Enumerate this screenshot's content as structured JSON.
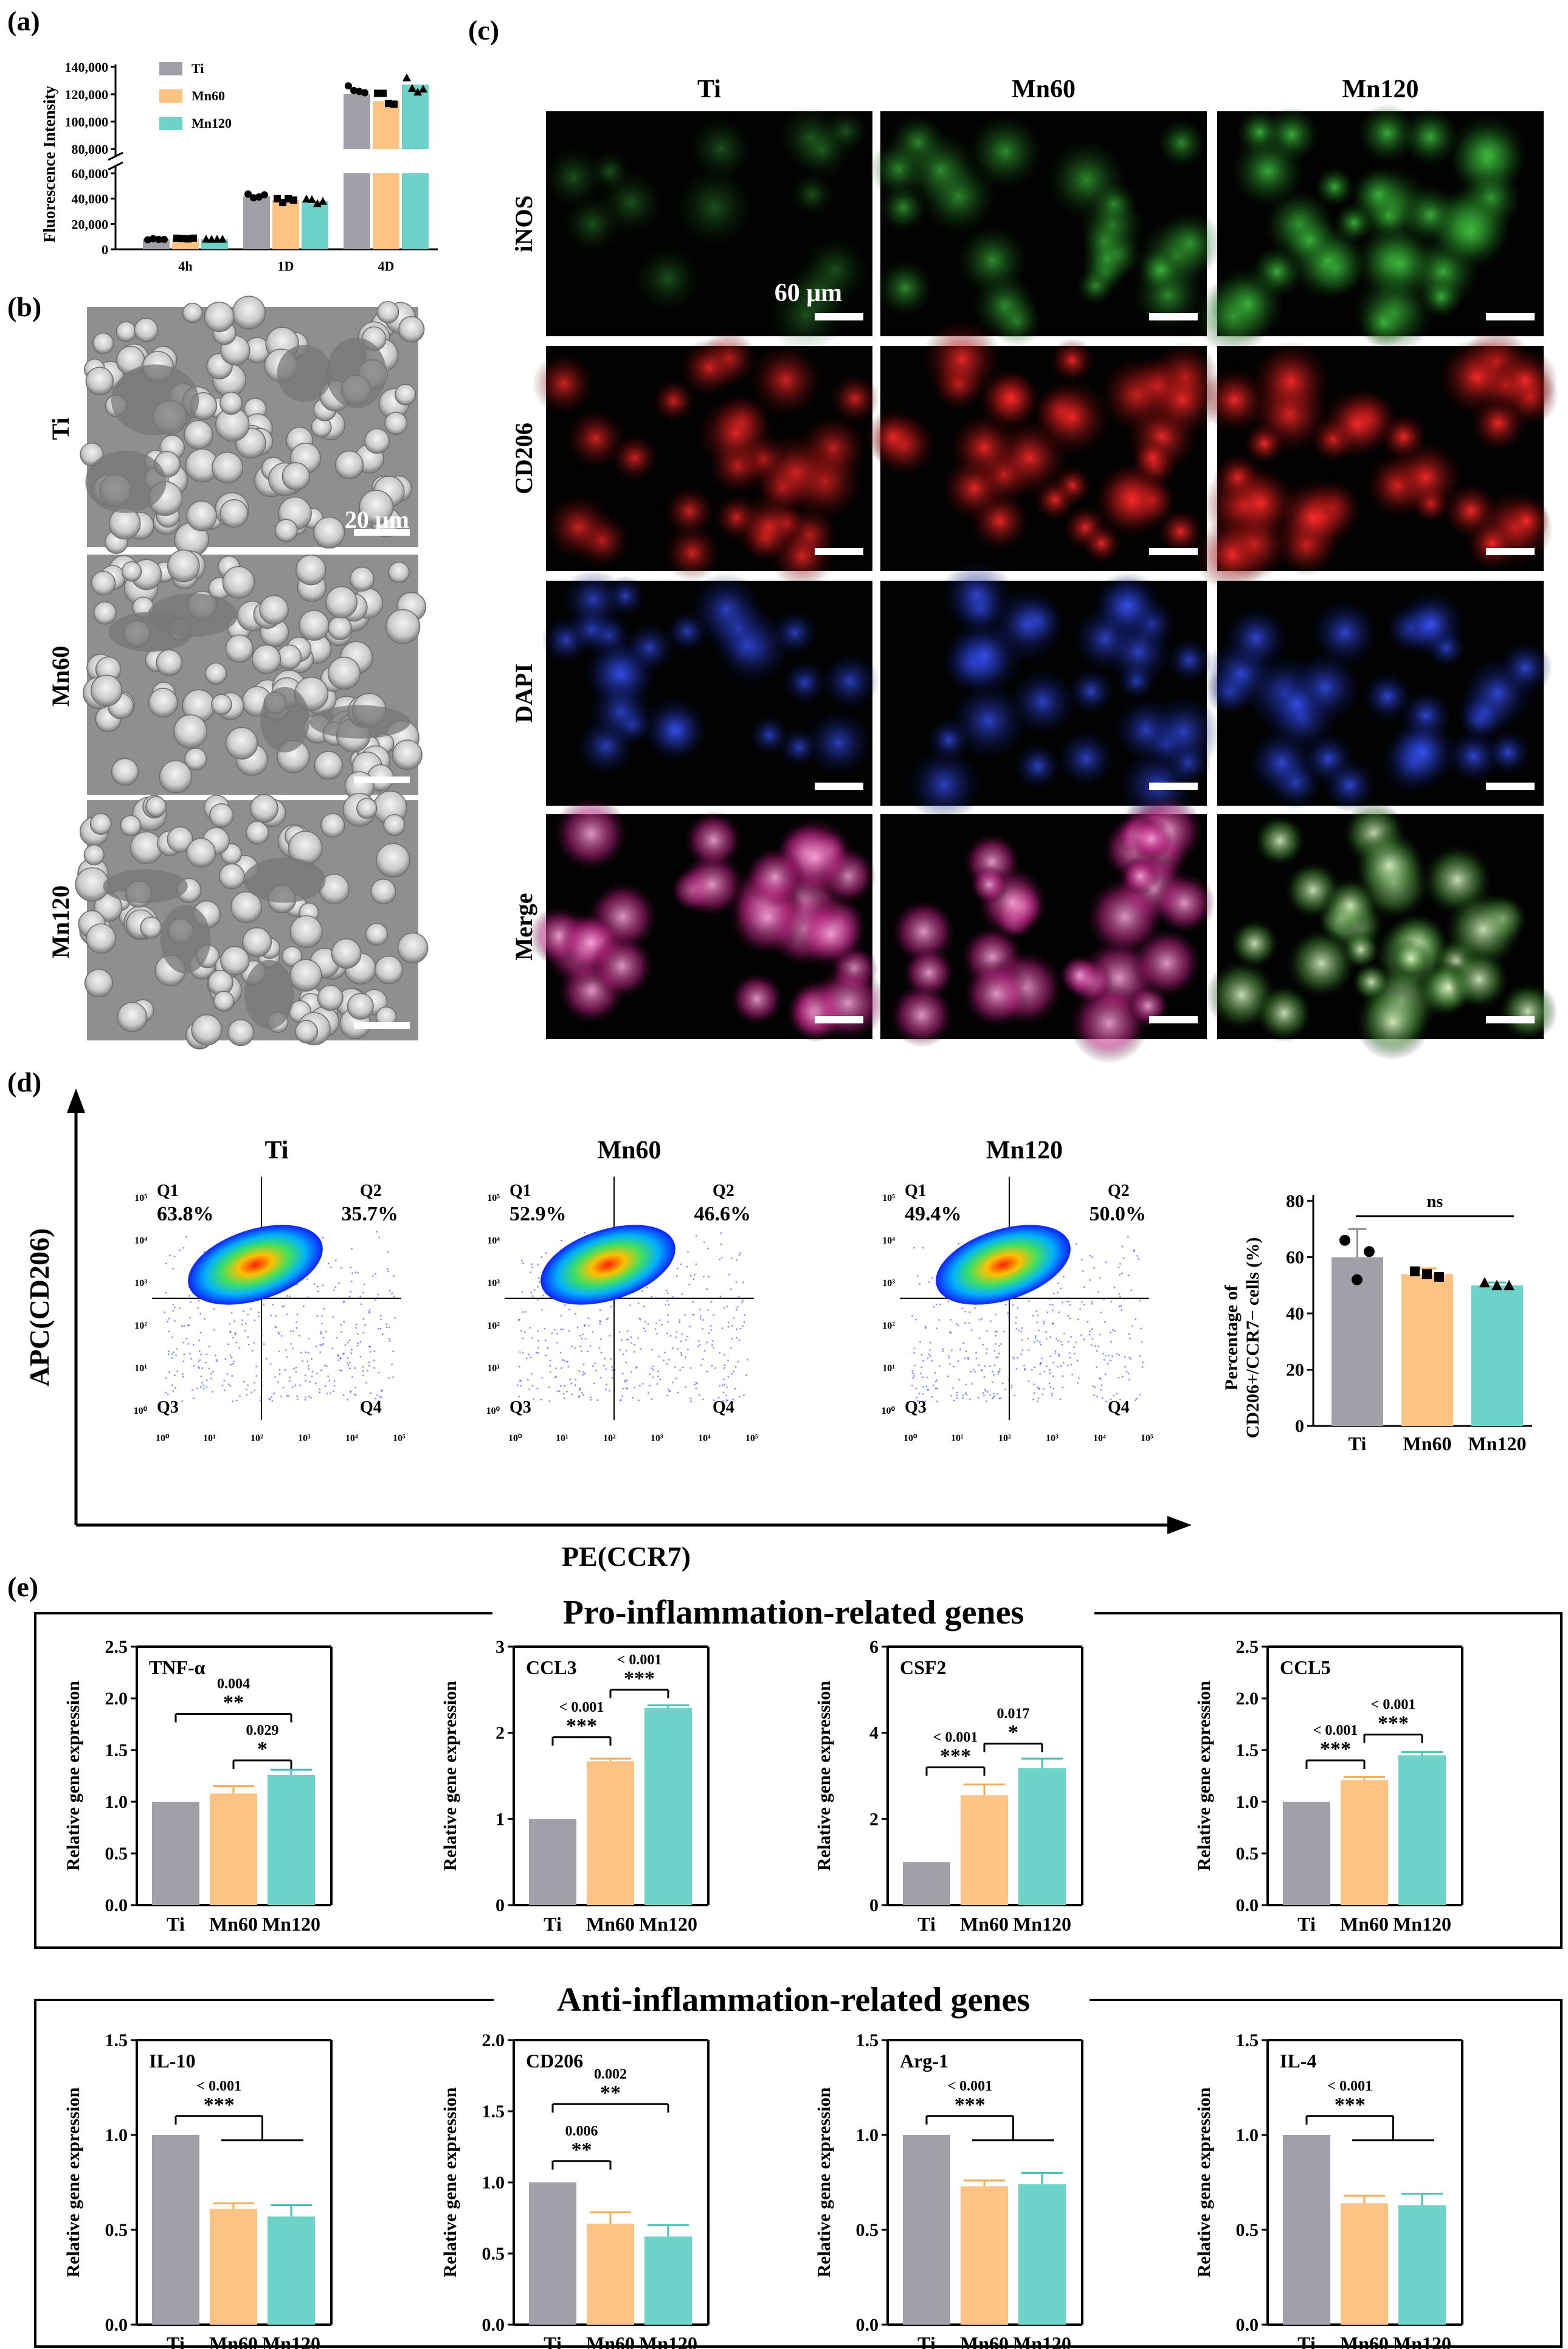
{
  "colors": {
    "ti": "#a1a0a9",
    "mn60": "#fdc384",
    "mn120": "#6dd2c8",
    "bar_edge_ti": "#8c8b94",
    "bar_edge_mn60": "#f4a955",
    "bar_edge_mn120": "#44bfb3"
  },
  "labels": {
    "a": "(a)",
    "b": "(b)",
    "c": "(c)",
    "d": "(d)",
    "e": "(e)"
  },
  "groups": {
    "ti": "Ti",
    "mn60": "Mn60",
    "mn120": "Mn120"
  },
  "panel_a": {
    "ylabel": "Fluorescence Intensity",
    "legend": [
      "Ti",
      "Mn60",
      "Mn120"
    ],
    "ticks_low": [
      "0",
      "20,000",
      "40,000",
      "60,000"
    ],
    "ticks_high": [
      "80,000",
      "100,000",
      "120,000",
      "140,000"
    ],
    "categories": [
      "4h",
      "1D",
      "4D"
    ]
  },
  "panel_b": {
    "rows": [
      "Ti",
      "Mn60",
      "Mn120"
    ],
    "scale": "20 μm"
  },
  "panel_c": {
    "cols": [
      "Ti",
      "Mn60",
      "Mn120"
    ],
    "rows": [
      "iNOS",
      "CD206",
      "DAPI",
      "Merge"
    ],
    "scale": "60 μm"
  },
  "panel_d": {
    "yaxis": "APC(CD206)",
    "xaxis": "PE(CCR7)",
    "quadrants": [
      "Q1",
      "Q2",
      "Q3",
      "Q4"
    ],
    "plots": [
      {
        "title": "Ti",
        "q1": "63.8%",
        "q2": "35.7%"
      },
      {
        "title": "Mn60",
        "q1": "52.9%",
        "q2": "46.6%"
      },
      {
        "title": "Mn120",
        "q1": "49.4%",
        "q2": "50.0%"
      }
    ],
    "tick_labels": [
      "10⁰",
      "10¹",
      "10²",
      "10³",
      "10⁴",
      "10⁵"
    ],
    "bar_ylabel1": "Percentage of",
    "bar_ylabel2": "CD206+/CCR7− cells (%)",
    "bar_ticks": [
      "0",
      "20",
      "40",
      "60",
      "80"
    ],
    "ns": "ns"
  },
  "panel_e": {
    "pro_title": "Pro-inflammation-related genes",
    "anti_title": "Anti-inflammation-related genes",
    "ylabel": "Relative gene expression"
  },
  "chart_data": [
    {
      "type": "bar",
      "title": "(a) Fluorescence Intensity",
      "categories": [
        "4h",
        "1D",
        "4D"
      ],
      "series": [
        {
          "name": "Ti",
          "values": [
            8000,
            42000,
            120000
          ]
        },
        {
          "name": "Mn60",
          "values": [
            8500,
            39000,
            115000
          ]
        },
        {
          "name": "Mn120",
          "values": [
            8000,
            38000,
            127000
          ]
        }
      ],
      "ylabel": "Fluorescence Intensity",
      "ylim": [
        0,
        140000
      ],
      "axis_break": [
        60000,
        80000
      ]
    },
    {
      "type": "bar",
      "title": "(d) Percentage of CD206+/CCR7− cells (%)",
      "categories": [
        "Ti",
        "Mn60",
        "Mn120"
      ],
      "values": [
        60,
        54,
        50
      ],
      "errors": [
        10,
        2,
        1
      ],
      "ylim": [
        0,
        80
      ],
      "annotation": "ns"
    },
    {
      "type": "bar",
      "title": "TNF-α",
      "categories": [
        "Ti",
        "Mn60",
        "Mn120"
      ],
      "values": [
        1.0,
        1.08,
        1.26
      ],
      "errors": [
        0,
        0.07,
        0.05
      ],
      "ylim": [
        0,
        2.5
      ],
      "ticks": [
        "0.0",
        "0.5",
        "1.0",
        "1.5",
        "2.0",
        "2.5"
      ],
      "brackets": [
        {
          "from": 0,
          "to": 2,
          "p": "0.004",
          "stars": "**",
          "level": 1.85
        },
        {
          "from": 1,
          "to": 2,
          "p": "0.029",
          "stars": "*",
          "level": 1.4
        }
      ]
    },
    {
      "type": "bar",
      "title": "CCL3",
      "categories": [
        "Ti",
        "Mn60",
        "Mn120"
      ],
      "values": [
        1.0,
        1.67,
        2.29
      ],
      "errors": [
        0,
        0.03,
        0.03
      ],
      "ylim": [
        0,
        3
      ],
      "ticks": [
        "0",
        "1",
        "2",
        "3"
      ],
      "brackets": [
        {
          "from": 0,
          "to": 1,
          "p": "< 0.001",
          "stars": "***",
          "level": 1.95
        },
        {
          "from": 1,
          "to": 2,
          "p": "< 0.001",
          "stars": "***",
          "level": 2.5
        }
      ]
    },
    {
      "type": "bar",
      "title": "CSF2",
      "categories": [
        "Ti",
        "Mn60",
        "Mn120"
      ],
      "values": [
        1.0,
        2.55,
        3.18
      ],
      "errors": [
        0,
        0.25,
        0.22
      ],
      "ylim": [
        0,
        6
      ],
      "ticks": [
        "0",
        "2",
        "4",
        "6"
      ],
      "brackets": [
        {
          "from": 0,
          "to": 1,
          "p": "< 0.001",
          "stars": "***",
          "level": 3.2
        },
        {
          "from": 1,
          "to": 2,
          "p": "0.017",
          "stars": "*",
          "level": 3.75
        }
      ]
    },
    {
      "type": "bar",
      "title": "CCL5",
      "categories": [
        "Ti",
        "Mn60",
        "Mn120"
      ],
      "values": [
        1.0,
        1.21,
        1.45
      ],
      "errors": [
        0,
        0.03,
        0.03
      ],
      "ylim": [
        0,
        2.5
      ],
      "ticks": [
        "0.0",
        "0.5",
        "1.0",
        "1.5",
        "2.0",
        "2.5"
      ],
      "brackets": [
        {
          "from": 0,
          "to": 1,
          "p": "< 0.001",
          "stars": "***",
          "level": 1.4
        },
        {
          "from": 1,
          "to": 2,
          "p": "< 0.001",
          "stars": "***",
          "level": 1.65
        }
      ]
    },
    {
      "type": "bar",
      "title": "IL-10",
      "categories": [
        "Ti",
        "Mn60",
        "Mn120"
      ],
      "values": [
        1.0,
        0.61,
        0.57
      ],
      "errors": [
        0,
        0.03,
        0.06
      ],
      "ylim": [
        0,
        1.5
      ],
      "ticks": [
        "0.0",
        "0.5",
        "1.0",
        "1.5"
      ],
      "brackets": [
        {
          "from": 0,
          "to": "1-2",
          "p": "< 0.001",
          "stars": "***",
          "level": 1.1
        }
      ]
    },
    {
      "type": "bar",
      "title": "CD206",
      "categories": [
        "Ti",
        "Mn60",
        "Mn120"
      ],
      "values": [
        1.0,
        0.71,
        0.62
      ],
      "errors": [
        0,
        0.08,
        0.08
      ],
      "ylim": [
        0,
        2.0
      ],
      "ticks": [
        "0.0",
        "0.5",
        "1.0",
        "1.5",
        "2.0"
      ],
      "brackets": [
        {
          "from": 0,
          "to": 1,
          "p": "0.006",
          "stars": "**",
          "level": 1.15
        },
        {
          "from": 0,
          "to": 2,
          "p": "0.002",
          "stars": "**",
          "level": 1.55
        }
      ]
    },
    {
      "type": "bar",
      "title": "Arg-1",
      "categories": [
        "Ti",
        "Mn60",
        "Mn120"
      ],
      "values": [
        1.0,
        0.73,
        0.74
      ],
      "errors": [
        0,
        0.03,
        0.06
      ],
      "ylim": [
        0,
        1.5
      ],
      "ticks": [
        "0.0",
        "0.5",
        "1.0",
        "1.5"
      ],
      "brackets": [
        {
          "from": 0,
          "to": "1-2",
          "p": "< 0.001",
          "stars": "***",
          "level": 1.1
        }
      ]
    },
    {
      "type": "bar",
      "title": "IL-4",
      "categories": [
        "Ti",
        "Mn60",
        "Mn120"
      ],
      "values": [
        1.0,
        0.64,
        0.63
      ],
      "errors": [
        0,
        0.04,
        0.06
      ],
      "ylim": [
        0,
        1.5
      ],
      "ticks": [
        "0.0",
        "0.5",
        "1.0",
        "1.5"
      ],
      "brackets": [
        {
          "from": 0,
          "to": "1-2",
          "p": "< 0.001",
          "stars": "***",
          "level": 1.1
        }
      ]
    }
  ]
}
